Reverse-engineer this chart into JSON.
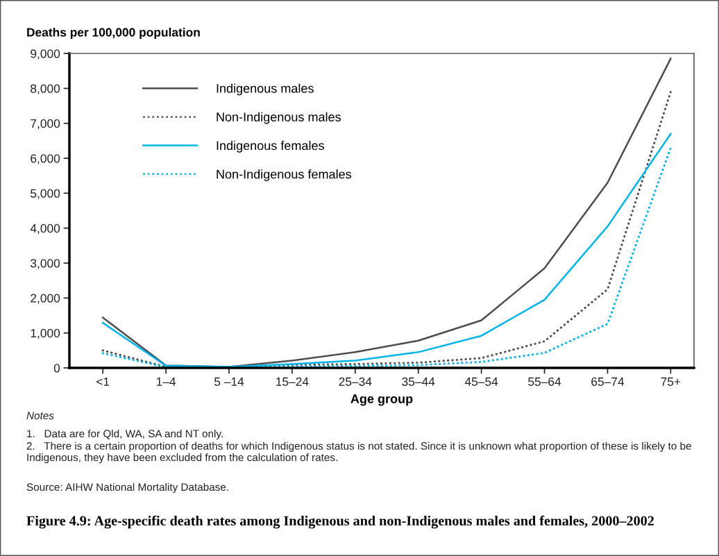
{
  "chart_data": {
    "type": "line",
    "title": "Figure 4.9: Age-specific death rates among Indigenous and non-Indigenous males and females, 2000–2002",
    "ylabel": "Deaths per 100,000 population",
    "xlabel": "Age group",
    "categories": [
      "<1",
      "1–4",
      "5 –14",
      "15–24",
      "25–34",
      "35–44",
      "45–54",
      "55–64",
      "65–74",
      "75+"
    ],
    "series": [
      {
        "name": "Indigenous males",
        "color": "#4d4d4f",
        "line_style": "solid",
        "values": [
          1440,
          70,
          30,
          210,
          450,
          780,
          1360,
          2850,
          5300,
          8850
        ]
      },
      {
        "name": "Non-Indigenous males",
        "color": "#4d4d4f",
        "line_style": "dotted",
        "values": [
          500,
          30,
          20,
          90,
          110,
          150,
          280,
          760,
          2250,
          7900
        ]
      },
      {
        "name": "Indigenous females",
        "color": "#00b4ea",
        "line_style": "solid",
        "values": [
          1290,
          60,
          30,
          110,
          210,
          450,
          920,
          1950,
          4050,
          6700
        ]
      },
      {
        "name": "Non-Indigenous females",
        "color": "#00b4ea",
        "line_style": "dotted",
        "values": [
          420,
          20,
          20,
          40,
          60,
          80,
          170,
          430,
          1260,
          6300
        ]
      }
    ],
    "ylim": [
      0,
      9000
    ],
    "yticks": [
      0,
      {
        "value": 1000,
        "label": "1,000"
      },
      {
        "value": 2000,
        "label": "2,000"
      },
      {
        "value": 3000,
        "label": "3,000"
      },
      {
        "value": 4000,
        "label": "4,000"
      },
      {
        "value": 5000,
        "label": "5,000"
      },
      {
        "value": 6000,
        "label": "6,000"
      },
      {
        "value": 7000,
        "label": "7,000"
      },
      {
        "value": 8000,
        "label": "8,000"
      },
      {
        "value": 9000,
        "label": "9,000"
      }
    ],
    "legend": "top left",
    "grid": false,
    "marker": "none",
    "annotations": [
      "Notes",
      "1.   Data are for Qld, WA, SA and NT only.",
      "2.   There is a certain proportion of deaths for which Indigenous status is not stated. Since it is unknown what proportion of these is likely to be Indigenous, they have been excluded from the calculation of rates.",
      "Source: AIHW National Mortality Database."
    ]
  }
}
